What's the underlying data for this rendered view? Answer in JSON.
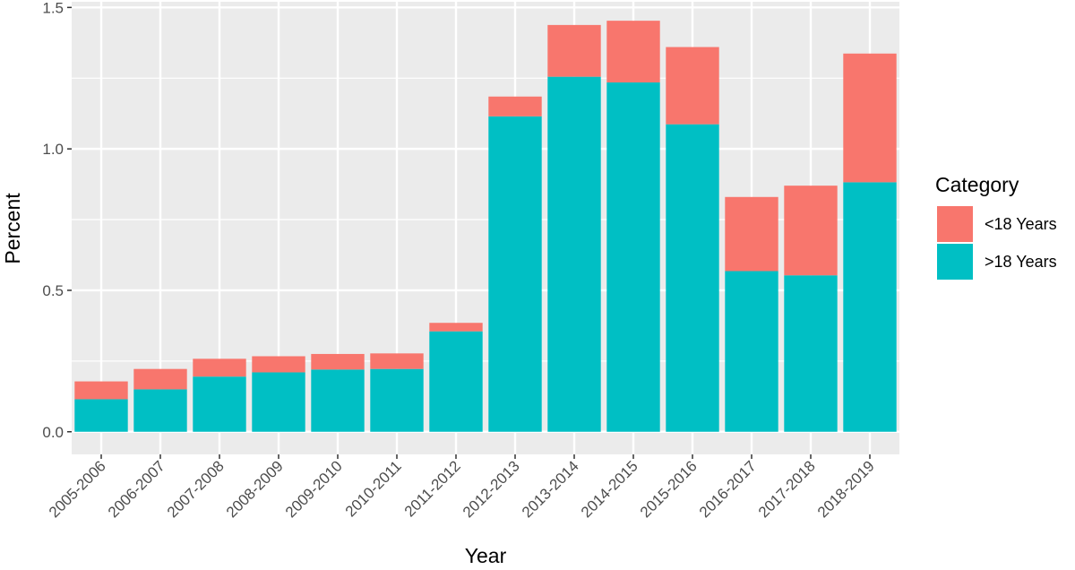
{
  "chart_data": {
    "type": "bar",
    "stacked": true,
    "title": "",
    "xlabel": "Year",
    "ylabel": "Percent",
    "ylim": [
      -0.08,
      1.52
    ],
    "yticks": [
      0.0,
      0.5,
      1.0,
      1.5
    ],
    "ytick_labels": [
      "0.0",
      "0.5",
      "1.0",
      "1.5"
    ],
    "grid": true,
    "legend": {
      "title": "Category",
      "placement": "right"
    },
    "categories": [
      "2005-2006",
      "2006-2007",
      "2007-2008",
      "2008-2009",
      "2009-2010",
      "2010-2011",
      "2011-2012",
      "2012-2013",
      "2013-2014",
      "2014-2015",
      "2015-2016",
      "2016-2017",
      "2017-2018",
      "2018-2019"
    ],
    "series": [
      {
        "name": ">18 Years",
        "color": "#00bfc4",
        "values": [
          0.115,
          0.15,
          0.195,
          0.21,
          0.22,
          0.222,
          0.355,
          1.115,
          1.255,
          1.235,
          1.087,
          0.568,
          0.553,
          0.882
        ]
      },
      {
        "name": "<18 Years",
        "color": "#f8766d",
        "values": [
          0.063,
          0.072,
          0.063,
          0.057,
          0.055,
          0.055,
          0.03,
          0.07,
          0.183,
          0.218,
          0.273,
          0.262,
          0.317,
          0.455
        ]
      }
    ],
    "legend_order": [
      "<18 Years",
      ">18 Years"
    ]
  },
  "colors": {
    "panel": "#ebebeb",
    "grid": "#ffffff"
  }
}
